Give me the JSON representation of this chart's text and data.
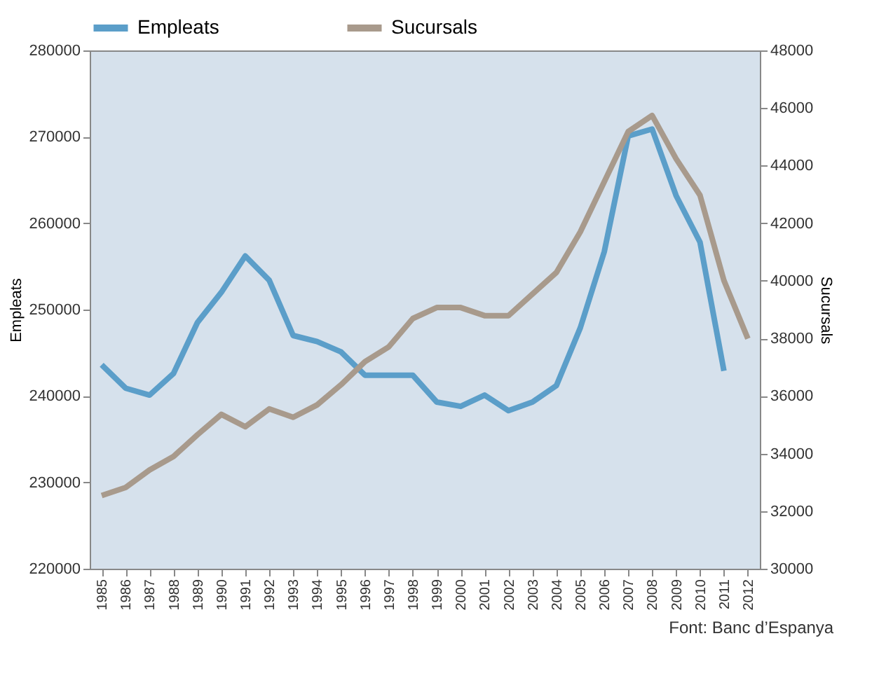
{
  "chart_data": {
    "type": "line",
    "categories": [
      "1985",
      "1986",
      "1987",
      "1988",
      "1989",
      "1990",
      "1991",
      "1992",
      "1993",
      "1994",
      "1995",
      "1996",
      "1997",
      "1998",
      "1999",
      "2000",
      "2001",
      "2002",
      "2003",
      "2004",
      "2005",
      "2006",
      "2007",
      "2008",
      "2009",
      "2010",
      "2011",
      "2012"
    ],
    "series": [
      {
        "name": "Empleats",
        "color": "#5b9ec9",
        "values": [
          243600,
          240900,
          240100,
          242600,
          248500,
          252000,
          256200,
          253400,
          247000,
          246300,
          245100,
          242400,
          242400,
          242400,
          239300,
          238800,
          240100,
          238300,
          239300,
          241200,
          247900,
          256700,
          270100,
          270900,
          263200,
          257800,
          242900,
          null
        ]
      },
      {
        "name": "Sucursals",
        "color": "#a89a8c",
        "axis": "y2",
        "values": [
          32540,
          32820,
          33430,
          33900,
          34650,
          35360,
          34930,
          35550,
          35260,
          35690,
          36390,
          37190,
          37710,
          38690,
          39070,
          39070,
          38790,
          38790,
          39540,
          40290,
          41700,
          43440,
          45180,
          45740,
          44240,
          42970,
          40010,
          37990
        ]
      }
    ],
    "ylabel": "Empleats",
    "y2label": "Sucursals",
    "ylim": [
      220000,
      280000
    ],
    "yticks": [
      220000,
      230000,
      240000,
      250000,
      260000,
      270000,
      280000
    ],
    "y2lim": [
      30000,
      48000
    ],
    "y2ticks": [
      30000,
      32000,
      34000,
      36000,
      38000,
      40000,
      42000,
      44000,
      46000,
      48000
    ],
    "legend": "top left",
    "grid": false,
    "marker": "none",
    "line_style": "solid",
    "annotations": [
      "Font: Banc d’Espanya"
    ]
  }
}
